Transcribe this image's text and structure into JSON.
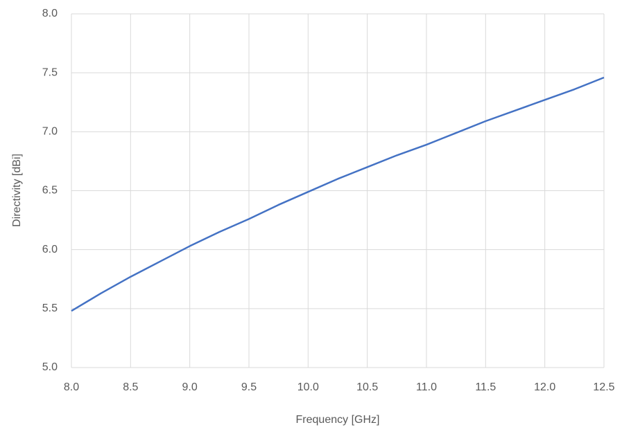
{
  "chart_data": {
    "type": "line",
    "x_label": "Frequency [GHz]",
    "y_label": "Directivity [dBi]",
    "x": [
      8.0,
      8.25,
      8.5,
      8.75,
      9.0,
      9.25,
      9.5,
      9.75,
      10.0,
      10.25,
      10.5,
      10.75,
      11.0,
      11.25,
      11.5,
      11.75,
      12.0,
      12.25,
      12.5
    ],
    "series": [
      {
        "color": "#4472c4",
        "values": [
          5.48,
          5.63,
          5.77,
          5.9,
          6.03,
          6.15,
          6.26,
          6.38,
          6.49,
          6.6,
          6.7,
          6.8,
          6.89,
          6.99,
          7.09,
          7.18,
          7.27,
          7.36,
          7.46
        ]
      }
    ],
    "xlim": [
      8,
      12.5
    ],
    "xticks": [
      {
        "value": 8,
        "label": "8.0"
      },
      {
        "value": 8.5,
        "label": "8.5"
      },
      {
        "value": 9,
        "label": "9.0"
      },
      {
        "value": 9.5,
        "label": "9.5"
      },
      {
        "value": 10,
        "label": "10.0"
      },
      {
        "value": 10.5,
        "label": "10.5"
      },
      {
        "value": 11,
        "label": "11.0"
      },
      {
        "value": 11.5,
        "label": "11.5"
      },
      {
        "value": 12,
        "label": "12.0"
      },
      {
        "value": 12.5,
        "label": "12.5"
      }
    ],
    "ylim": [
      5,
      8
    ],
    "yticks": [
      {
        "value": 5,
        "label": "5.0"
      },
      {
        "value": 5.5,
        "label": "5.5"
      },
      {
        "value": 6,
        "label": "6.0"
      },
      {
        "value": 6.5,
        "label": "6.5"
      },
      {
        "value": 7,
        "label": "7.0"
      },
      {
        "value": 7.5,
        "label": "7.5"
      },
      {
        "value": 8,
        "label": "8.0"
      }
    ],
    "grid": true
  }
}
